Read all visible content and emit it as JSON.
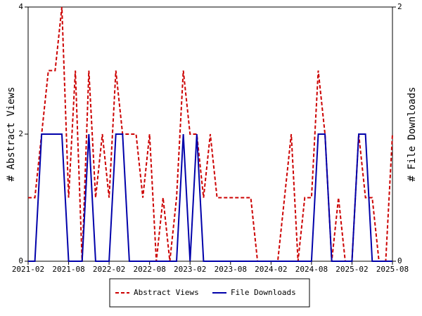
{
  "chart_data": {
    "type": "line",
    "x": [
      "2021-02",
      "2021-03",
      "2021-04",
      "2021-05",
      "2021-06",
      "2021-07",
      "2021-08",
      "2021-09",
      "2021-10",
      "2021-11",
      "2021-12",
      "2022-01",
      "2022-02",
      "2022-03",
      "2022-04",
      "2022-05",
      "2022-06",
      "2022-07",
      "2022-08",
      "2022-09",
      "2022-10",
      "2022-11",
      "2022-12",
      "2023-01",
      "2023-02",
      "2023-03",
      "2023-04",
      "2023-05",
      "2023-06",
      "2023-07",
      "2023-08",
      "2023-09",
      "2023-10",
      "2023-11",
      "2023-12",
      "2024-01",
      "2024-02",
      "2024-03",
      "2024-04",
      "2024-05",
      "2024-06",
      "2024-07",
      "2024-08",
      "2024-09",
      "2024-10",
      "2024-11",
      "2024-12",
      "2025-01",
      "2025-02",
      "2025-03",
      "2025-04",
      "2025-05",
      "2025-06",
      "2025-07",
      "2025-08"
    ],
    "xticks": [
      "2021-02",
      "2021-08",
      "2022-02",
      "2022-08",
      "2023-02",
      "2023-08",
      "2024-02",
      "2024-08",
      "2025-02",
      "2025-08"
    ],
    "ylabel": "# Abstract Views",
    "y2label": "# File Downloads",
    "ylim": [
      0,
      4
    ],
    "yticks": [
      0,
      2,
      4
    ],
    "y2lim": [
      0,
      2
    ],
    "y2ticks": [
      0,
      2
    ],
    "legend": "bottom",
    "series": [
      {
        "name": "Abstract Views",
        "color": "#cc0000",
        "dash": true,
        "values": [
          1,
          1,
          2,
          3,
          3,
          4,
          1,
          3,
          0,
          3,
          1,
          2,
          1,
          3,
          2,
          2,
          2,
          1,
          2,
          0,
          1,
          0,
          1,
          3,
          2,
          2,
          1,
          2,
          1,
          1,
          1,
          1,
          1,
          1,
          0,
          0,
          0,
          0,
          1,
          2,
          0,
          1,
          1,
          3,
          2,
          0,
          1,
          0,
          0,
          2,
          1,
          1,
          0,
          0,
          2
        ]
      },
      {
        "name": "File Downloads",
        "color": "#0000aa",
        "axis": "y2",
        "values": [
          0,
          0,
          1,
          1,
          1,
          1,
          0,
          0,
          0,
          1,
          0,
          0,
          0,
          1,
          1,
          0,
          0,
          0,
          0,
          0,
          0,
          0,
          0,
          1,
          0,
          1,
          0,
          0,
          0,
          0,
          0,
          0,
          0,
          0,
          0,
          0,
          0,
          0,
          0,
          0,
          0,
          0,
          0,
          1,
          1,
          0,
          0,
          0,
          0,
          1,
          1,
          0,
          0,
          0,
          0
        ]
      }
    ]
  }
}
